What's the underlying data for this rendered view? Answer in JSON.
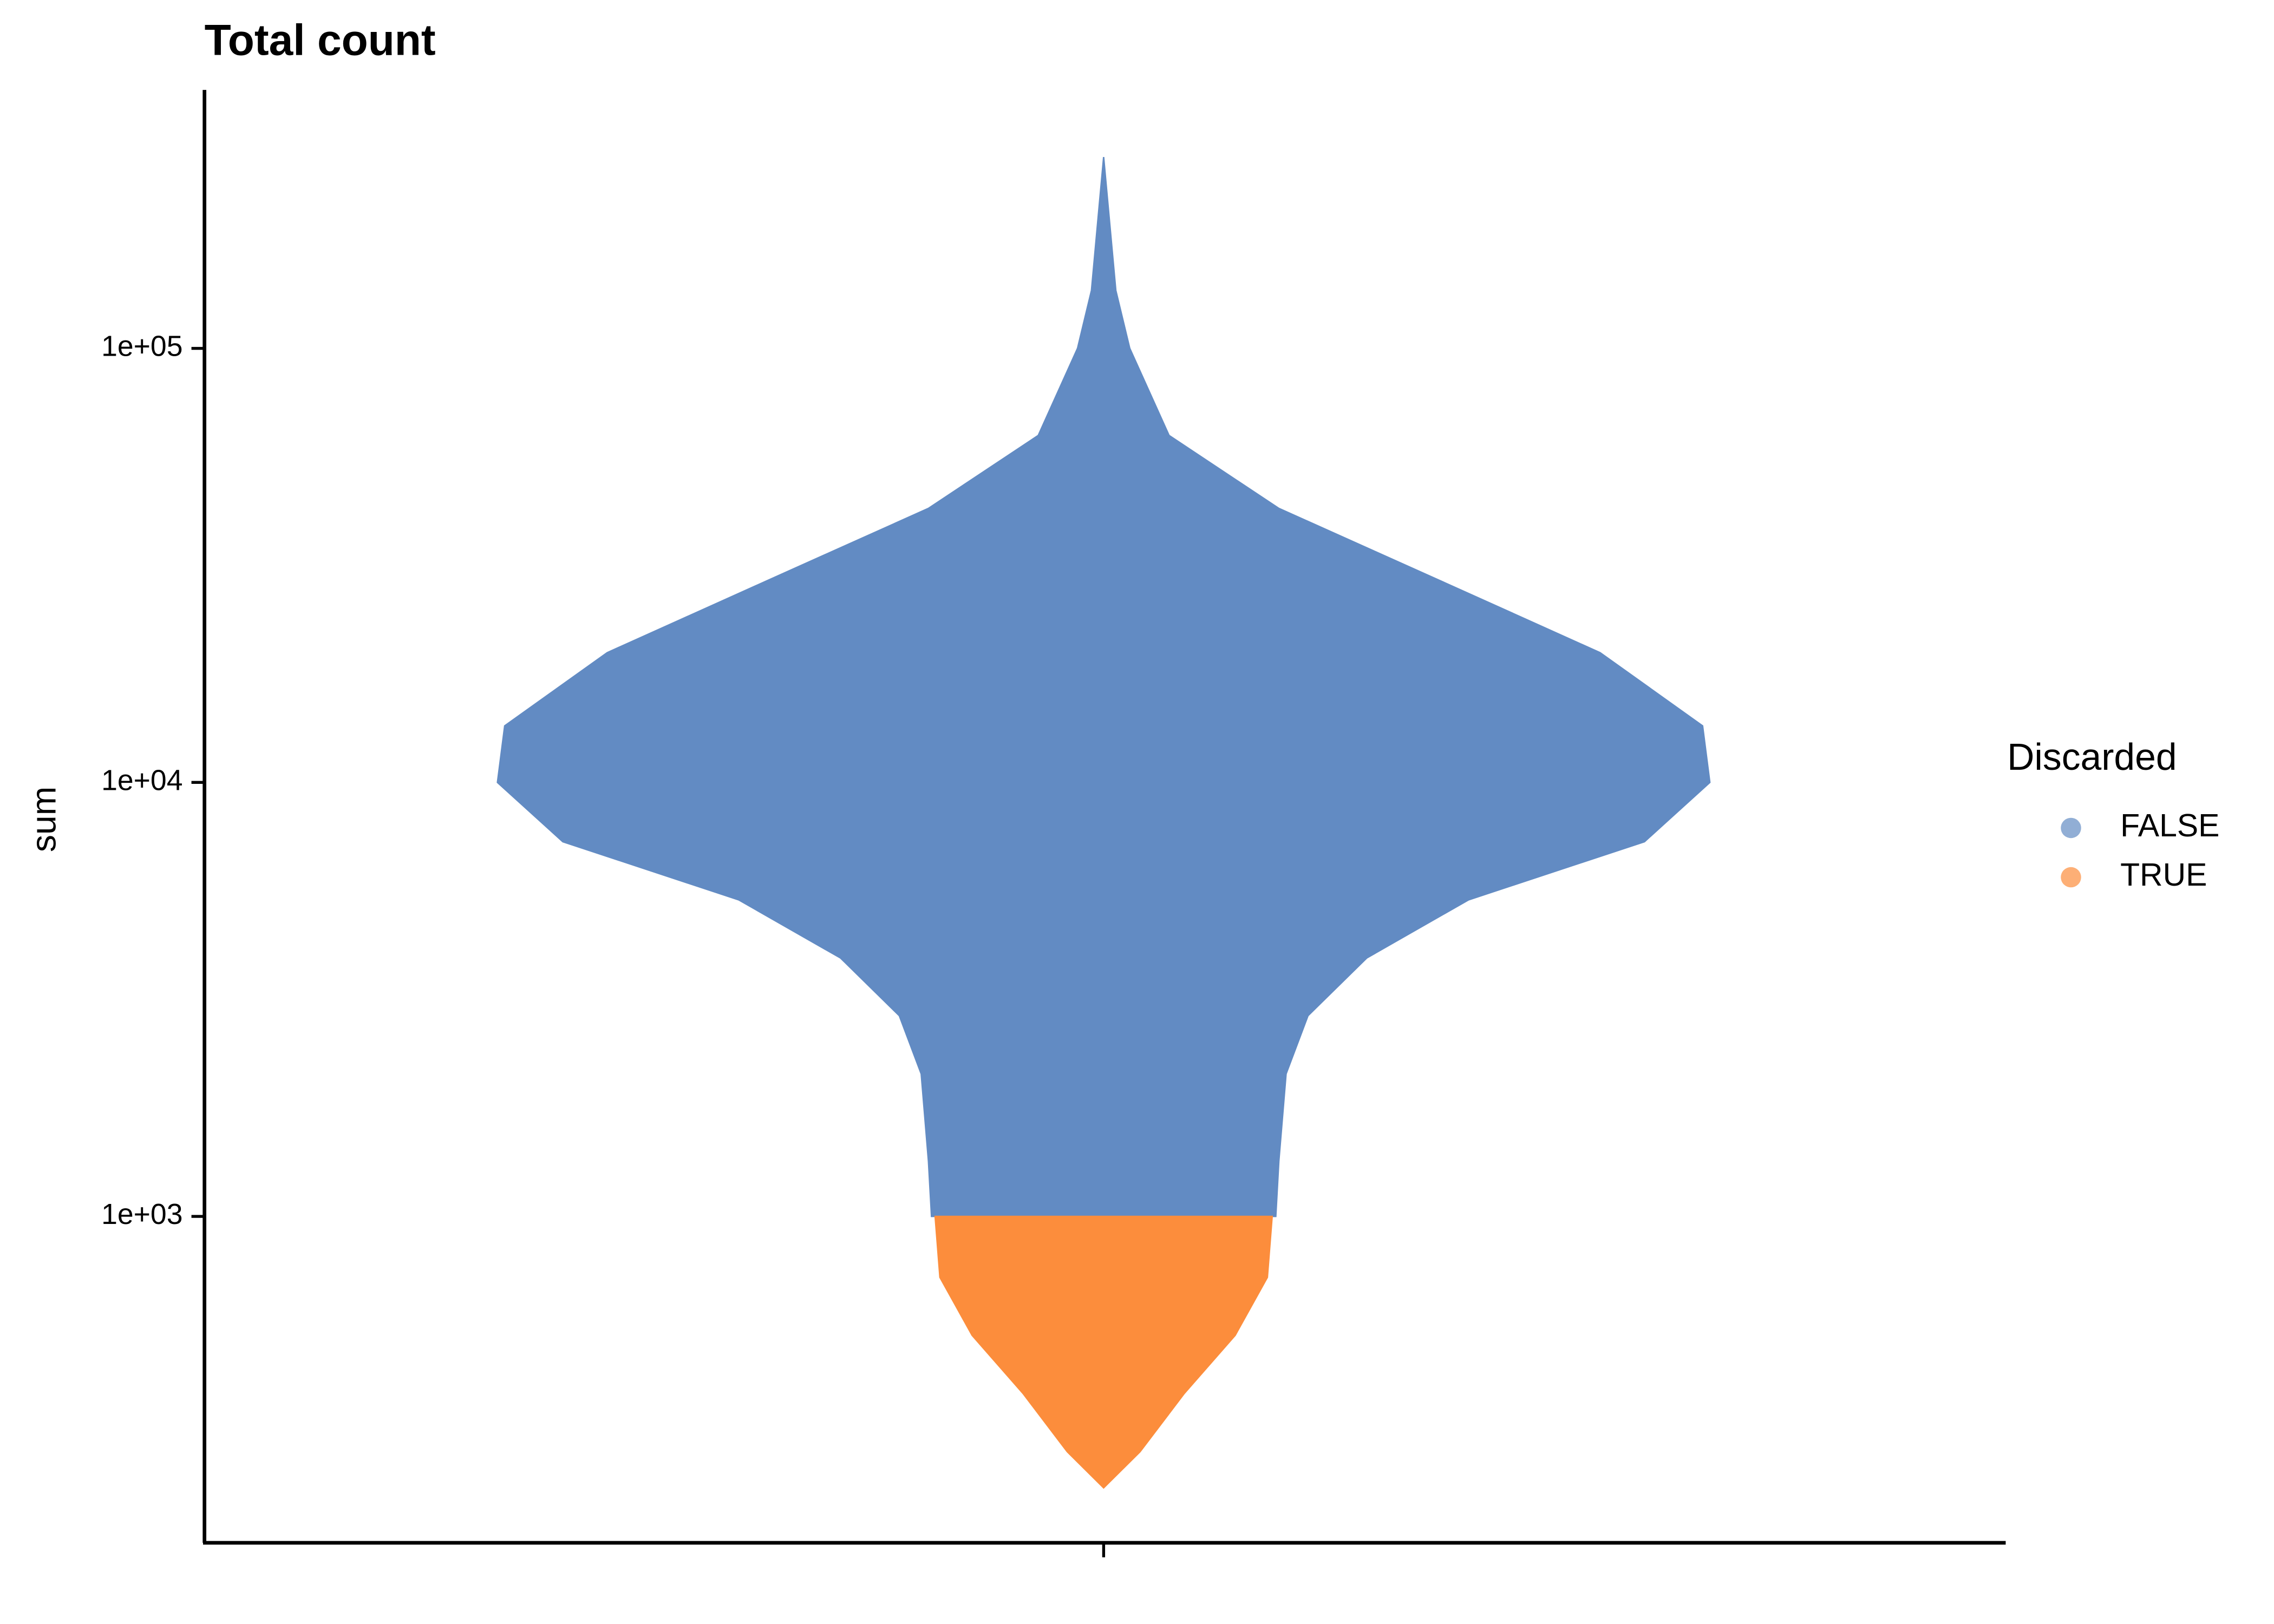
{
  "chart_data": {
    "type": "violin",
    "title": "Total count",
    "y_label": "sum",
    "log_y": true,
    "ylim": [
      177,
      394000
    ],
    "yticks": [
      {
        "value": 1000,
        "label": "1e+03"
      },
      {
        "value": 10000,
        "label": "1e+04"
      },
      {
        "value": 100000,
        "label": "1e+05"
      }
    ],
    "legend_title": "Discarded",
    "legend_position": "right",
    "series": [
      {
        "name": "FALSE",
        "color": "#628bc3",
        "values": [
          1000,
          1340,
          2130,
          2900,
          3940,
          5360,
          7300,
          10000,
          13500,
          19900,
          29200,
          42800,
          63000,
          100000,
          136000,
          276000
        ],
        "density": [
          0.284,
          0.289,
          0.301,
          0.337,
          0.434,
          0.602,
          0.892,
          1.0,
          0.988,
          0.819,
          0.554,
          0.289,
          0.108,
          0.043,
          0.02,
          0
        ]
      },
      {
        "name": "TRUE",
        "color": "#fc8d3c",
        "values": [
          237,
          287,
          391,
          532,
          724,
          1000
        ],
        "density": [
          0,
          0.06,
          0.133,
          0.217,
          0.27,
          0.278
        ]
      }
    ]
  }
}
